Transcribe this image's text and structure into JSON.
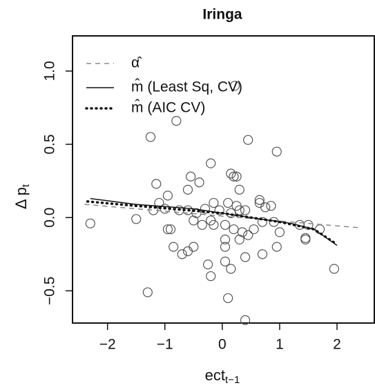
{
  "chart_data": {
    "type": "scatter",
    "title": "Iringa",
    "x_label": {
      "text": "ect",
      "subscript": "t−1"
    },
    "y_label": {
      "text": "Δ p",
      "subscript": "t"
    },
    "xlim": [
      -2.61,
      2.65
    ],
    "ylim": [
      -0.72,
      1.24
    ],
    "xticks": [
      {
        "value": -2,
        "label": "−2"
      },
      {
        "value": -1,
        "label": "−1"
      },
      0,
      1,
      2
    ],
    "yticks": [
      {
        "value": -0.5,
        "label": "−0.5"
      },
      {
        "value": 0,
        "label": "0.0"
      },
      0.5,
      {
        "value": 1,
        "label": "1.0"
      }
    ],
    "points": {
      "color": "#555555",
      "x": [
        -2.3,
        -1.25,
        -0.8,
        -1.15,
        -1.1,
        -1.0,
        -0.95,
        -0.9,
        -0.85,
        -1.3,
        0.22,
        0.45,
        0.95,
        -0.2,
        0.2,
        -0.55,
        -0.4,
        0.3,
        -0.6,
        0.65,
        0.75,
        0.85,
        0.65,
        -0.15,
        0.1,
        0.25,
        0.3,
        0.4,
        0.15,
        -0.05,
        -0.3,
        -0.45,
        -0.6,
        -0.75,
        -0.5,
        -0.35,
        -0.2,
        0.05,
        0.2,
        0.35,
        0.3,
        0.45,
        0.55,
        0.7,
        0.9,
        1.0,
        0.95,
        0.7,
        0.4,
        0.05,
        0.05,
        -0.15,
        -0.5,
        -0.6,
        -0.7,
        -0.25,
        -0.2,
        0.05,
        0.15,
        0.1,
        0.4,
        1.45,
        1.45,
        1.95,
        1.7,
        1.35,
        1.5,
        -1.5,
        -1.2,
        -0.95,
        0.15,
        0.25
      ],
      "y": [
        -0.04,
        0.55,
        0.66,
        0.23,
        0.1,
        0.06,
        0.15,
        -0.08,
        -0.2,
        -0.51,
        0.9,
        0.53,
        0.45,
        0.37,
        0.28,
        0.28,
        0.24,
        0.19,
        0.19,
        0.1,
        0.07,
        0.08,
        0.12,
        0.1,
        0.1,
        0.08,
        0.05,
        0.05,
        0.03,
        0.05,
        0.06,
        0.03,
        0.05,
        0.05,
        -0.02,
        -0.05,
        -0.02,
        -0.05,
        -0.08,
        -0.1,
        -0.15,
        -0.12,
        -0.08,
        -0.03,
        -0.03,
        -0.1,
        -0.2,
        -0.25,
        -0.27,
        -0.15,
        -0.2,
        -0.05,
        -0.2,
        -0.23,
        -0.25,
        -0.32,
        -0.4,
        -0.3,
        -0.35,
        -0.55,
        -0.7,
        -0.14,
        -0.15,
        -0.35,
        -0.08,
        -0.05,
        -0.05,
        -0.01,
        0.05,
        -0.08,
        0.3,
        0.28
      ]
    },
    "lines": [
      {
        "name": "α̂",
        "style": "dashed",
        "color": "#888888",
        "x": [
          -2.4,
          2.4
        ],
        "y": [
          0.09,
          -0.07
        ]
      },
      {
        "name": "m̂  (Least Sq, CV)",
        "style": "solid",
        "color": "#111111",
        "x": [
          -2.3,
          -1.5,
          -0.5,
          0.5,
          1.2,
          1.6,
          2.0
        ],
        "y": [
          0.13,
          0.09,
          0.06,
          0.0,
          -0.04,
          -0.08,
          -0.19
        ]
      },
      {
        "name": "m̂  (AIC CV)",
        "style": "dotted",
        "color": "#111111",
        "x": [
          -2.35,
          -1.5,
          0,
          1,
          1.6,
          1.95
        ],
        "y": [
          0.11,
          0.08,
          0.03,
          -0.03,
          -0.08,
          -0.17
        ]
      }
    ]
  }
}
